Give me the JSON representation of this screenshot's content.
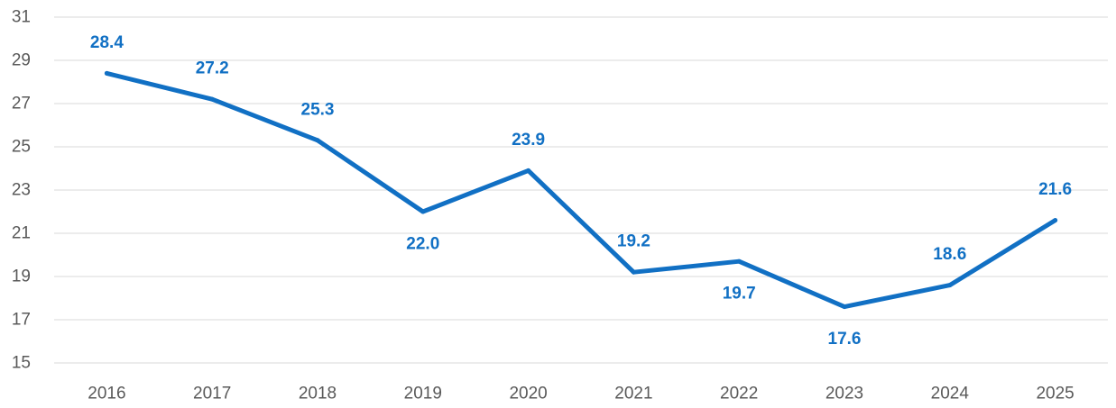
{
  "chart_data": {
    "type": "line",
    "title": "",
    "xlabel": "",
    "ylabel": "",
    "categories": [
      "2016",
      "2017",
      "2018",
      "2019",
      "2020",
      "2021",
      "2022",
      "2023",
      "2024",
      "2025"
    ],
    "series": [
      {
        "values": [
          28.4,
          27.2,
          25.3,
          22.0,
          23.9,
          19.2,
          19.7,
          17.6,
          18.6,
          21.6
        ],
        "labels": [
          "28.4",
          "27.2",
          "25.3",
          "22.0",
          "23.9",
          "19.2",
          "19.7",
          "17.6",
          "18.6",
          "21.6"
        ],
        "label_positions": [
          "above",
          "above",
          "above",
          "below",
          "above",
          "above",
          "below",
          "below",
          "above",
          "above"
        ],
        "color": "#1170C4"
      }
    ],
    "ylim": [
      15,
      31
    ],
    "yticks": [
      15,
      17,
      19,
      21,
      23,
      25,
      27,
      29,
      31
    ],
    "ytick_labels": [
      "15",
      "17",
      "19",
      "21",
      "23",
      "25",
      "27",
      "29",
      "31"
    ],
    "grid": true,
    "legend": "none"
  }
}
